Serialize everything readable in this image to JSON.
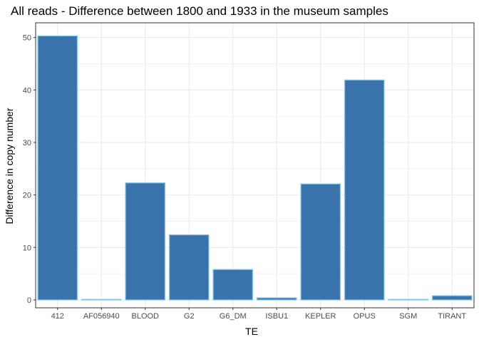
{
  "chart_data": {
    "type": "bar",
    "title": "All reads - Difference between 1800 and 1933 in the museum samples",
    "xlabel": "TE",
    "ylabel": "Difference in copy number",
    "categories": [
      "412",
      "AF056940",
      "BLOOD",
      "G2",
      "G6_DM",
      "ISBU1",
      "KEPLER",
      "OPUS",
      "SGM",
      "TIRANT"
    ],
    "values": [
      50.3,
      0.1,
      22.3,
      12.4,
      5.8,
      0.4,
      22.1,
      41.9,
      0.1,
      0.8
    ],
    "ylim": [
      -1.5,
      52.8
    ],
    "yticks": [
      0,
      10,
      20,
      30,
      40,
      50
    ],
    "grid": true,
    "legend": "none",
    "colors": {
      "bar_fill": "#3a72ab",
      "bar_outline": "#7ec8ee",
      "grid": "#ebebeb",
      "panel_border": "#333333"
    }
  }
}
